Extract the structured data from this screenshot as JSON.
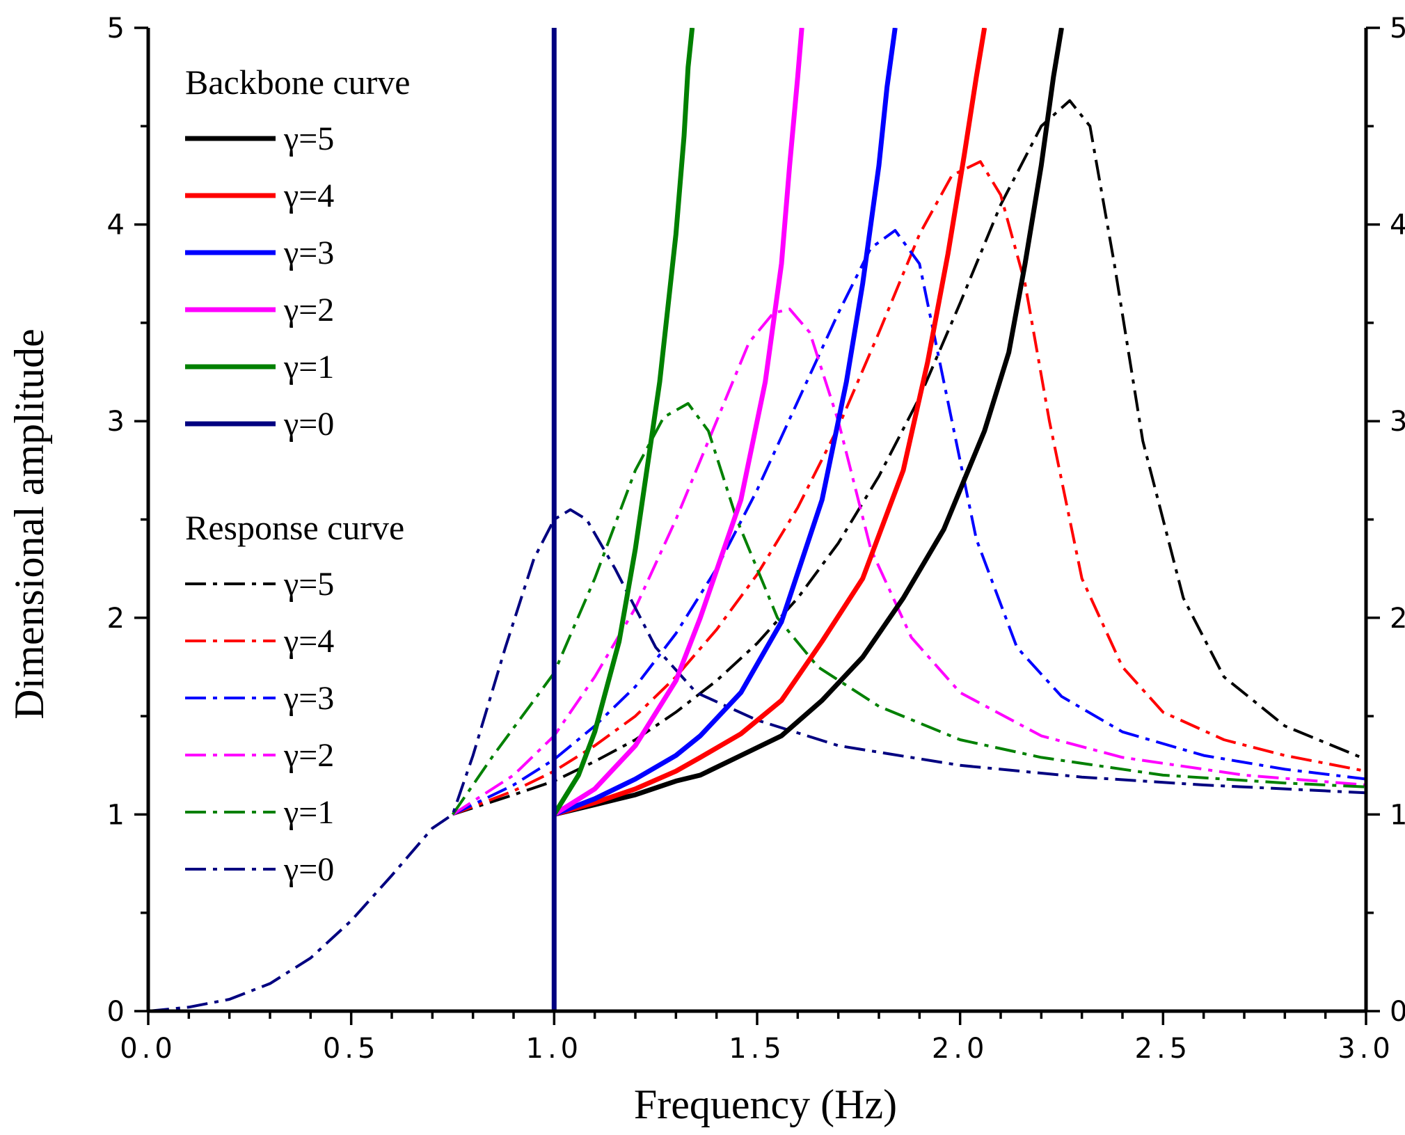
{
  "chart_data": {
    "type": "line",
    "xlabel": "Frequency (Hz)",
    "ylabel": "Dimensional amplitude",
    "xlim": [
      0,
      3
    ],
    "ylim": [
      0,
      5
    ],
    "x_ticks": [
      "0.0",
      "0.5",
      "1.0",
      "1.5",
      "2.0",
      "2.5",
      "3.0"
    ],
    "y_ticks": [
      "0",
      "1",
      "2",
      "3",
      "4",
      "5"
    ],
    "right_y_ticks": [
      "0",
      "1",
      "2",
      "3",
      "4",
      "5"
    ],
    "grid": false,
    "legend_backbone_title": "Backbone curve",
    "legend_response_title": "Response curve",
    "series": [
      {
        "name": "Backbone γ=5",
        "legend": "γ=5",
        "group": "backbone",
        "gamma": 5,
        "color": "#000000",
        "style": "solid",
        "x": [
          1.0,
          1.1,
          1.2,
          1.3,
          1.36,
          1.46,
          1.56,
          1.66,
          1.76,
          1.86,
          1.96,
          2.06,
          2.12,
          2.16,
          2.2,
          2.23,
          2.25
        ],
        "y": [
          1.0,
          1.05,
          1.1,
          1.17,
          1.2,
          1.3,
          1.4,
          1.58,
          1.8,
          2.1,
          2.45,
          2.95,
          3.35,
          3.8,
          4.3,
          4.75,
          5.0
        ]
      },
      {
        "name": "Backbone γ=4",
        "legend": "γ=4",
        "group": "backbone",
        "gamma": 4,
        "color": "#ff0000",
        "style": "solid",
        "x": [
          1.0,
          1.1,
          1.2,
          1.3,
          1.36,
          1.46,
          1.56,
          1.66,
          1.76,
          1.86,
          1.92,
          1.97,
          2.01,
          2.04,
          2.06
        ],
        "y": [
          1.0,
          1.06,
          1.13,
          1.22,
          1.29,
          1.41,
          1.58,
          1.88,
          2.2,
          2.75,
          3.3,
          3.85,
          4.35,
          4.75,
          5.0
        ]
      },
      {
        "name": "Backbone γ=3",
        "legend": "γ=3",
        "group": "backbone",
        "gamma": 3,
        "color": "#0000ff",
        "style": "solid",
        "x": [
          1.0,
          1.1,
          1.2,
          1.3,
          1.36,
          1.46,
          1.56,
          1.66,
          1.72,
          1.76,
          1.8,
          1.82,
          1.84
        ],
        "y": [
          1.0,
          1.08,
          1.18,
          1.3,
          1.4,
          1.62,
          1.98,
          2.6,
          3.2,
          3.7,
          4.3,
          4.7,
          5.0
        ]
      },
      {
        "name": "Backbone γ=2",
        "legend": "γ=2",
        "group": "backbone",
        "gamma": 2,
        "color": "#ff00ff",
        "style": "solid",
        "x": [
          1.0,
          1.1,
          1.2,
          1.3,
          1.36,
          1.46,
          1.52,
          1.56,
          1.58,
          1.6,
          1.61
        ],
        "y": [
          1.0,
          1.13,
          1.35,
          1.68,
          2.0,
          2.6,
          3.2,
          3.8,
          4.3,
          4.75,
          5.0
        ]
      },
      {
        "name": "Backbone γ=1",
        "legend": "γ=1",
        "group": "backbone",
        "gamma": 1,
        "color": "#008000",
        "style": "solid",
        "x": [
          1.0,
          1.06,
          1.1,
          1.16,
          1.2,
          1.26,
          1.3,
          1.32,
          1.33,
          1.34
        ],
        "y": [
          1.0,
          1.2,
          1.42,
          1.88,
          2.35,
          3.2,
          3.95,
          4.45,
          4.8,
          5.0
        ]
      },
      {
        "name": "Backbone γ=0",
        "legend": "γ=0",
        "group": "backbone",
        "gamma": 0,
        "color": "#000080",
        "style": "solid",
        "x": [
          1.0,
          1.0
        ],
        "y": [
          0,
          5
        ]
      },
      {
        "name": "Response γ=5",
        "legend": "γ=5",
        "group": "response",
        "gamma": 5,
        "color": "#000000",
        "style": "dashdot",
        "x": [
          0.75,
          0.9,
          1.0,
          1.1,
          1.2,
          1.3,
          1.4,
          1.5,
          1.6,
          1.7,
          1.8,
          1.9,
          2.0,
          2.1,
          2.2,
          2.27,
          2.32,
          2.38,
          2.45,
          2.55,
          2.65,
          2.8,
          3.0
        ],
        "y": [
          1.0,
          1.1,
          1.17,
          1.27,
          1.38,
          1.52,
          1.68,
          1.87,
          2.1,
          2.38,
          2.72,
          3.12,
          3.6,
          4.1,
          4.5,
          4.63,
          4.5,
          3.8,
          2.9,
          2.1,
          1.7,
          1.45,
          1.28
        ]
      },
      {
        "name": "Response γ=4",
        "legend": "γ=4",
        "group": "response",
        "gamma": 4,
        "color": "#ff0000",
        "style": "dashdot",
        "x": [
          0.75,
          0.9,
          1.0,
          1.1,
          1.2,
          1.3,
          1.4,
          1.5,
          1.6,
          1.7,
          1.8,
          1.9,
          1.98,
          2.05,
          2.1,
          2.16,
          2.22,
          2.3,
          2.4,
          2.5,
          2.65,
          2.8,
          3.0
        ],
        "y": [
          1.0,
          1.12,
          1.22,
          1.35,
          1.5,
          1.7,
          1.94,
          2.22,
          2.56,
          2.97,
          3.45,
          3.95,
          4.25,
          4.32,
          4.15,
          3.7,
          3.0,
          2.2,
          1.75,
          1.52,
          1.38,
          1.3,
          1.22
        ]
      },
      {
        "name": "Response γ=3",
        "legend": "γ=3",
        "group": "response",
        "gamma": 3,
        "color": "#0000ff",
        "style": "dashdot",
        "x": [
          0.75,
          0.9,
          1.0,
          1.1,
          1.2,
          1.3,
          1.4,
          1.5,
          1.6,
          1.7,
          1.78,
          1.84,
          1.9,
          1.96,
          2.04,
          2.14,
          2.25,
          2.4,
          2.6,
          2.8,
          3.0
        ],
        "y": [
          1.0,
          1.15,
          1.28,
          1.45,
          1.65,
          1.92,
          2.25,
          2.65,
          3.1,
          3.55,
          3.88,
          3.97,
          3.8,
          3.2,
          2.4,
          1.85,
          1.6,
          1.42,
          1.3,
          1.23,
          1.18
        ]
      },
      {
        "name": "Response γ=2",
        "legend": "γ=2",
        "group": "response",
        "gamma": 2,
        "color": "#ff00ff",
        "style": "dashdot",
        "x": [
          0.75,
          0.9,
          1.0,
          1.1,
          1.2,
          1.3,
          1.4,
          1.48,
          1.54,
          1.58,
          1.63,
          1.7,
          1.78,
          1.88,
          2.0,
          2.2,
          2.4,
          2.7,
          3.0
        ],
        "y": [
          1.0,
          1.2,
          1.4,
          1.7,
          2.05,
          2.5,
          3.0,
          3.4,
          3.55,
          3.57,
          3.45,
          3.0,
          2.35,
          1.9,
          1.62,
          1.4,
          1.29,
          1.2,
          1.15
        ]
      },
      {
        "name": "Response γ=1",
        "legend": "γ=1",
        "group": "response",
        "gamma": 1,
        "color": "#008000",
        "style": "dashdot",
        "x": [
          0.75,
          0.85,
          0.95,
          1.0,
          1.1,
          1.2,
          1.27,
          1.33,
          1.38,
          1.45,
          1.55,
          1.65,
          1.8,
          2.0,
          2.2,
          2.5,
          2.8,
          3.0
        ],
        "y": [
          1.0,
          1.3,
          1.58,
          1.72,
          2.2,
          2.75,
          3.02,
          3.09,
          2.95,
          2.5,
          2.0,
          1.75,
          1.55,
          1.38,
          1.29,
          1.2,
          1.16,
          1.14
        ]
      },
      {
        "name": "Response γ=0",
        "legend": "γ=0",
        "group": "response",
        "gamma": 0,
        "color": "#000080",
        "style": "dashdot",
        "x": [
          0.0,
          0.1,
          0.2,
          0.3,
          0.4,
          0.5,
          0.6,
          0.7,
          0.75,
          0.8,
          0.88,
          0.95,
          1.0,
          1.04,
          1.08,
          1.15,
          1.25,
          1.35,
          1.5,
          1.7,
          2.0,
          2.3,
          2.6,
          3.0
        ],
        "y": [
          0.0,
          0.02,
          0.06,
          0.14,
          0.27,
          0.46,
          0.69,
          0.93,
          1.0,
          1.3,
          1.85,
          2.3,
          2.5,
          2.55,
          2.5,
          2.25,
          1.85,
          1.62,
          1.48,
          1.35,
          1.25,
          1.19,
          1.15,
          1.11
        ]
      }
    ]
  }
}
